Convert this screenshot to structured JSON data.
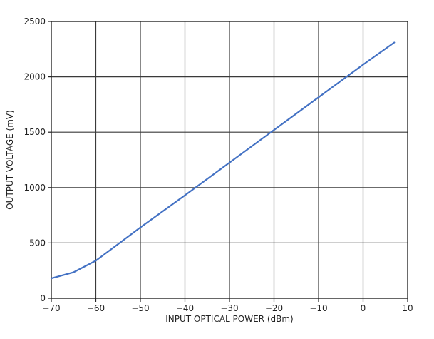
{
  "chart_data": {
    "type": "line",
    "title": "",
    "xlabel": "INPUT OPTICAL POWER (dBm)",
    "ylabel": "OUTPUT VOLTAGE (mV)",
    "xlim": [
      -70,
      10
    ],
    "ylim": [
      0,
      2500
    ],
    "x_ticks": [
      -70,
      -60,
      -50,
      -40,
      -30,
      -20,
      -10,
      0,
      10
    ],
    "x_tick_labels": [
      "−70",
      "−60",
      "−50",
      "−40",
      "−30",
      "−20",
      "−10",
      "0",
      "10"
    ],
    "y_ticks": [
      0,
      500,
      1000,
      1500,
      2000,
      2500
    ],
    "y_tick_labels": [
      "0",
      "500",
      "1000",
      "1500",
      "2000",
      "2500"
    ],
    "grid": true,
    "legend": "none",
    "series": [
      {
        "color": "#4472c4",
        "x": [
          -70,
          -65,
          -60,
          -55,
          -50,
          -40,
          -30,
          -20,
          -10,
          0,
          7
        ],
        "y": [
          180,
          235,
          340,
          490,
          640,
          930,
          1225,
          1520,
          1815,
          2110,
          2310
        ]
      }
    ]
  }
}
